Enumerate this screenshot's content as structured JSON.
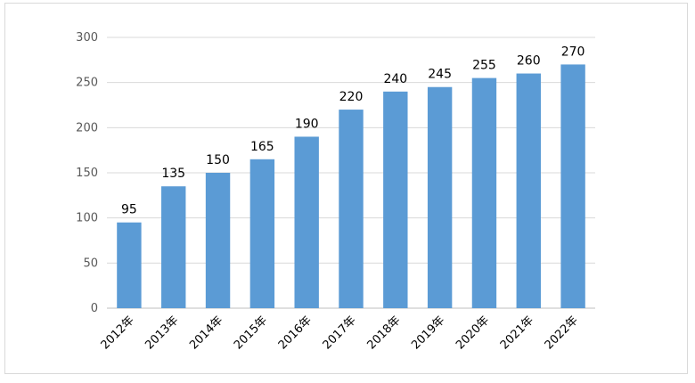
{
  "chart_data": {
    "type": "bar",
    "categories": [
      "2012年",
      "2013年",
      "2014年",
      "2015年",
      "2016年",
      "2017年",
      "2018年",
      "2019年",
      "2020年",
      "2021年",
      "2022年"
    ],
    "values": [
      95,
      135,
      150,
      165,
      190,
      220,
      240,
      245,
      255,
      260,
      270
    ],
    "title": "",
    "xlabel": "",
    "ylabel": "",
    "ylim": [
      0,
      300
    ],
    "yticks": [
      0,
      50,
      100,
      150,
      200,
      250,
      300
    ],
    "grid": true,
    "legend": "none",
    "bar_color": "#5b9bd5",
    "grid_color": "#d9d9d9",
    "data_labels": true
  }
}
